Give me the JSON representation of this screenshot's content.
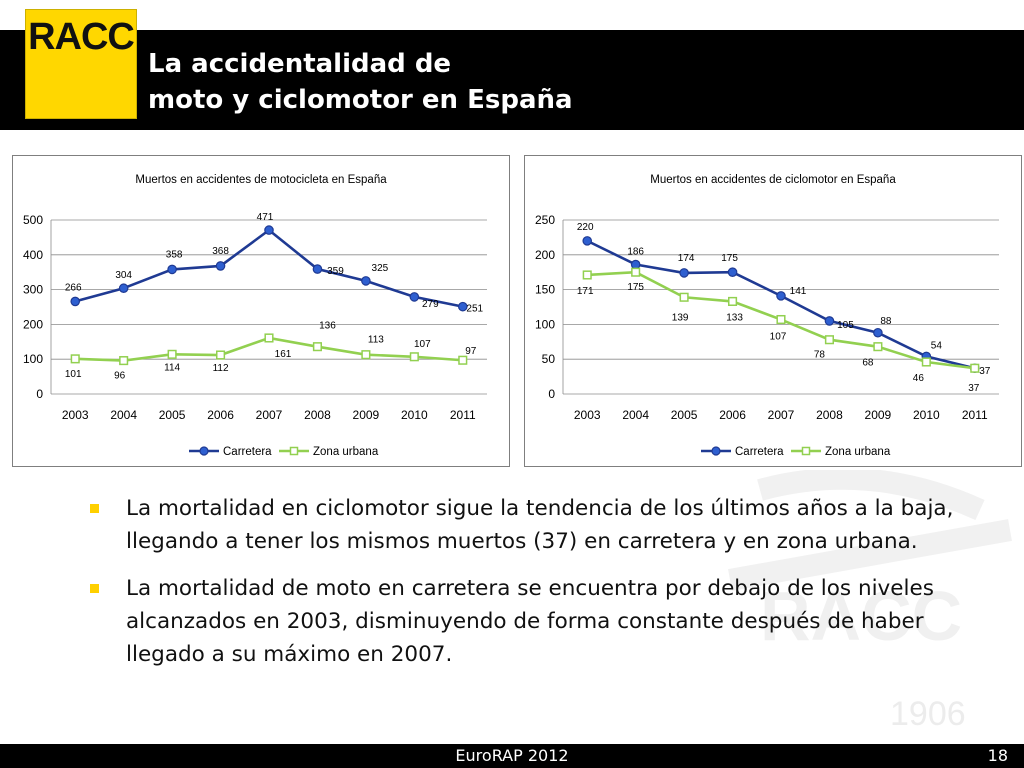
{
  "header": {
    "logo_text": "RACC",
    "title_line1": "La accidentalidad de",
    "title_line2": "moto y ciclomotor en España"
  },
  "watermark": {
    "text": "1906"
  },
  "colors": {
    "carretera": "#1f3a93",
    "zona_urbana": "#92d050",
    "accent": "#ffd700"
  },
  "chart_data": [
    {
      "type": "line",
      "title": "Muertos en accidentes de motocicleta en España",
      "categories": [
        "2003",
        "2004",
        "2005",
        "2006",
        "2007",
        "2008",
        "2009",
        "2010",
        "2011"
      ],
      "ylim": [
        0,
        500
      ],
      "yticks": [
        0,
        100,
        200,
        300,
        400,
        500
      ],
      "grid": true,
      "legend": "bottom",
      "series": [
        {
          "name": "Carretera",
          "marker": "circle",
          "values": [
            266,
            304,
            358,
            368,
            471,
            359,
            325,
            279,
            251
          ]
        },
        {
          "name": "Zona urbana",
          "marker": "square",
          "values": [
            101,
            96,
            114,
            112,
            161,
            136,
            113,
            107,
            97
          ]
        }
      ]
    },
    {
      "type": "line",
      "title": "Muertos en accidentes de ciclomotor en España",
      "categories": [
        "2003",
        "2004",
        "2005",
        "2006",
        "2007",
        "2008",
        "2009",
        "2010",
        "2011"
      ],
      "ylim": [
        0,
        250
      ],
      "yticks": [
        0,
        50,
        100,
        150,
        200,
        250
      ],
      "grid": true,
      "legend": "bottom",
      "series": [
        {
          "name": "Carretera",
          "marker": "circle",
          "values": [
            220,
            186,
            174,
            175,
            141,
            105,
            88,
            54,
            37
          ]
        },
        {
          "name": "Zona urbana",
          "marker": "square",
          "values": [
            171,
            175,
            139,
            133,
            107,
            78,
            68,
            46,
            37
          ]
        }
      ]
    }
  ],
  "bullets": [
    "La mortalidad en ciclomotor sigue la tendencia de los últimos años a la baja, llegando a tener los mismos muertos (37) en carretera y en zona urbana.",
    "La mortalidad de moto en carretera se encuentra por debajo de los niveles alcanzados en 2003, disminuyendo de forma constante después de haber llegado a su máximo en 2007."
  ],
  "footer": {
    "center": "EuroRAP 2012",
    "page": "18"
  }
}
